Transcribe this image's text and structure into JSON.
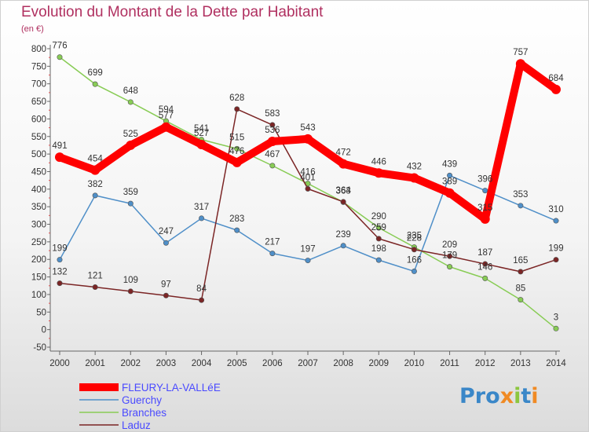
{
  "title": "Evolution du Montant de la Dette par Habitant",
  "unit": "(en €)",
  "logo": "Proxiti",
  "chart_data": {
    "type": "line",
    "x": [
      2000,
      2001,
      2002,
      2003,
      2004,
      2005,
      2006,
      2007,
      2008,
      2009,
      2010,
      2011,
      2012,
      2013,
      2014
    ],
    "ylim": [
      -50,
      800
    ],
    "yticks": [
      -50,
      0,
      50,
      100,
      150,
      200,
      250,
      300,
      350,
      400,
      450,
      500,
      550,
      600,
      650,
      700,
      750,
      800
    ],
    "grid": false,
    "legend_position": "bottom-left",
    "series": [
      {
        "name": "FLEURY-LA-VALLéE",
        "color": "#ff0000",
        "values": [
          491,
          454,
          525,
          577,
          527,
          476,
          536,
          543,
          472,
          446,
          432,
          389,
          315,
          757,
          684
        ]
      },
      {
        "name": "Guerchy",
        "color": "#4f8fc8",
        "values": [
          199,
          382,
          359,
          247,
          317,
          283,
          217,
          197,
          239,
          198,
          166,
          439,
          396,
          353,
          310
        ]
      },
      {
        "name": "Branches",
        "color": "#88cc55",
        "values": [
          776,
          699,
          648,
          594,
          541,
          515,
          467,
          416,
          363,
          290,
          235,
          179,
          146,
          85,
          3
        ]
      },
      {
        "name": "Laduz",
        "color": "#7b2525",
        "values": [
          132,
          121,
          109,
          97,
          84,
          628,
          583,
          401,
          364,
          259,
          228,
          209,
          187,
          165,
          199
        ]
      }
    ]
  }
}
